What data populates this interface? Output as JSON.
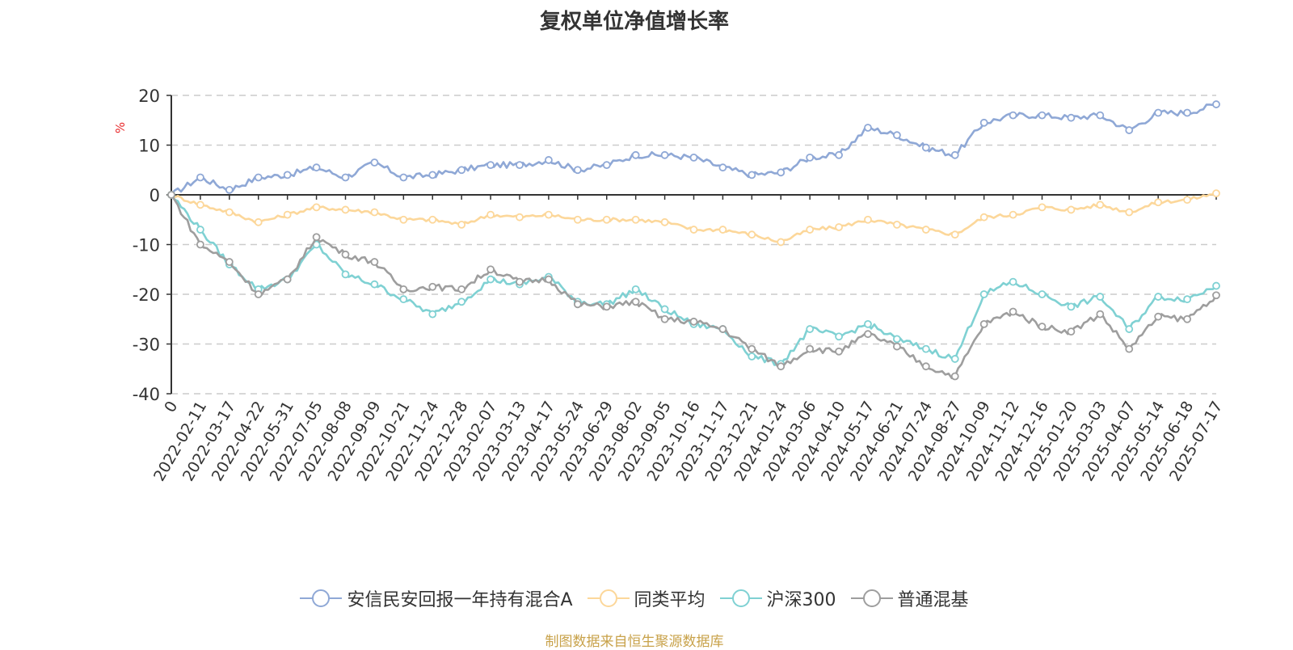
{
  "title": "复权单位净值增长率",
  "source": "制图数据来自恒生聚源数据库",
  "chart_data": {
    "type": "line",
    "title": "复权单位净值增长率",
    "ylabel": "%",
    "ylim": [
      -40,
      20
    ],
    "yticks": [
      20,
      10,
      0,
      -10,
      -20,
      -30,
      -40
    ],
    "grid": true,
    "legend_position": "bottom",
    "x_labels": [
      "0",
      "2022-02-11",
      "2022-03-17",
      "2022-04-22",
      "2022-05-31",
      "2022-07-05",
      "2022-08-08",
      "2022-09-09",
      "2022-10-21",
      "2022-11-24",
      "2022-12-28",
      "2023-02-07",
      "2023-03-13",
      "2023-04-17",
      "2023-05-24",
      "2023-06-29",
      "2023-08-02",
      "2023-09-05",
      "2023-10-16",
      "2023-11-17",
      "2023-12-21",
      "2024-01-24",
      "2024-03-06",
      "2024-04-10",
      "2024-05-17",
      "2024-06-21",
      "2024-07-24",
      "2024-08-27",
      "2024-10-09",
      "2024-11-12",
      "2024-12-16",
      "2025-01-20",
      "2025-03-03",
      "2025-04-07",
      "2025-05-14",
      "2025-06-18",
      "2025-07-17"
    ],
    "series": [
      {
        "name": "安信民安回报一年持有混合A",
        "color": "#8fa8d6",
        "values": [
          0,
          3.5,
          1.0,
          3.5,
          4.0,
          5.5,
          3.5,
          6.5,
          3.5,
          4.0,
          5.0,
          6.0,
          6.0,
          7.0,
          5.0,
          6.0,
          8.0,
          8.0,
          7.5,
          5.5,
          4.0,
          4.5,
          7.5,
          8.0,
          13.5,
          12.0,
          9.5,
          8.0,
          14.5,
          16.0,
          16.0,
          15.5,
          16.0,
          13.0,
          16.5,
          16.5,
          18.2
        ]
      },
      {
        "name": "同类平均",
        "color": "#fcd79a",
        "values": [
          0,
          -2.0,
          -3.5,
          -5.5,
          -4.0,
          -2.5,
          -3.0,
          -3.5,
          -5.0,
          -5.0,
          -6.0,
          -4.0,
          -4.5,
          -4.0,
          -5.0,
          -5.0,
          -5.0,
          -5.5,
          -7.0,
          -7.0,
          -8.0,
          -9.5,
          -7.0,
          -6.5,
          -5.0,
          -6.0,
          -7.0,
          -8.0,
          -4.5,
          -4.0,
          -2.5,
          -3.0,
          -2.0,
          -3.5,
          -1.5,
          -1.0,
          0.3
        ]
      },
      {
        "name": "沪深300",
        "color": "#7fd1d3",
        "values": [
          0,
          -7.0,
          -14.0,
          -19.0,
          -17.0,
          -10.0,
          -16.0,
          -18.0,
          -21.0,
          -24.0,
          -21.5,
          -17.0,
          -18.0,
          -16.5,
          -21.5,
          -22.0,
          -19.0,
          -23.0,
          -26.0,
          -27.0,
          -32.5,
          -34.0,
          -27.0,
          -28.5,
          -26.0,
          -29.0,
          -31.0,
          -33.0,
          -20.0,
          -17.5,
          -20.0,
          -22.5,
          -20.5,
          -27.0,
          -20.5,
          -21.0,
          -18.3
        ]
      },
      {
        "name": "普通混基",
        "color": "#9e9e9e",
        "values": [
          0,
          -10.0,
          -13.5,
          -20.0,
          -17.0,
          -8.5,
          -12.0,
          -13.5,
          -19.0,
          -18.5,
          -19.0,
          -15.0,
          -17.5,
          -17.0,
          -22.0,
          -22.5,
          -21.5,
          -25.0,
          -25.5,
          -27.0,
          -31.0,
          -34.5,
          -31.0,
          -31.5,
          -28.0,
          -30.5,
          -34.5,
          -36.5,
          -26.0,
          -23.5,
          -26.5,
          -27.5,
          -24.0,
          -31.0,
          -24.5,
          -25.0,
          -20.2
        ]
      }
    ]
  }
}
